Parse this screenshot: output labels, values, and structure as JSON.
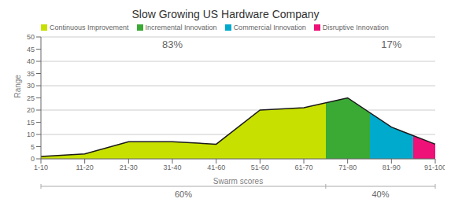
{
  "chart_data": {
    "type": "area",
    "title": "Slow Growing US Hardware Company",
    "xlabel": "Swarm scores",
    "ylabel": "Range",
    "categories": [
      "1-10",
      "11-20",
      "21-30",
      "31-40",
      "41-60",
      "51-60",
      "61-70",
      "71-80",
      "81-90",
      "91-100"
    ],
    "values": [
      1,
      2,
      7,
      7,
      6,
      20,
      21,
      25,
      13,
      6
    ],
    "colors": [
      "#c8e000",
      "#c8e000",
      "#c8e000",
      "#c8e000",
      "#c8e000",
      "#c8e000",
      "#c8e000",
      "#3aaa35",
      "#00aacc",
      "#ee1177"
    ],
    "line_color": "#1a1a1a",
    "ylim": [
      0,
      50
    ],
    "yticks": [
      0,
      5,
      10,
      15,
      20,
      25,
      30,
      35,
      40,
      45,
      50
    ],
    "grid": true,
    "legend": "upper left",
    "legend_items": [
      {
        "name": "Continuous Improvement",
        "color": "#c8e000"
      },
      {
        "name": "Incremental Innovation",
        "color": "#3aaa35"
      },
      {
        "name": "Commercial Innovation",
        "color": "#00aacc"
      },
      {
        "name": "Disruptive Innovation",
        "color": "#ee1177"
      }
    ],
    "annotations": [
      "83%",
      "17%"
    ],
    "bottom_annotations": [
      "60%",
      "40%"
    ]
  }
}
